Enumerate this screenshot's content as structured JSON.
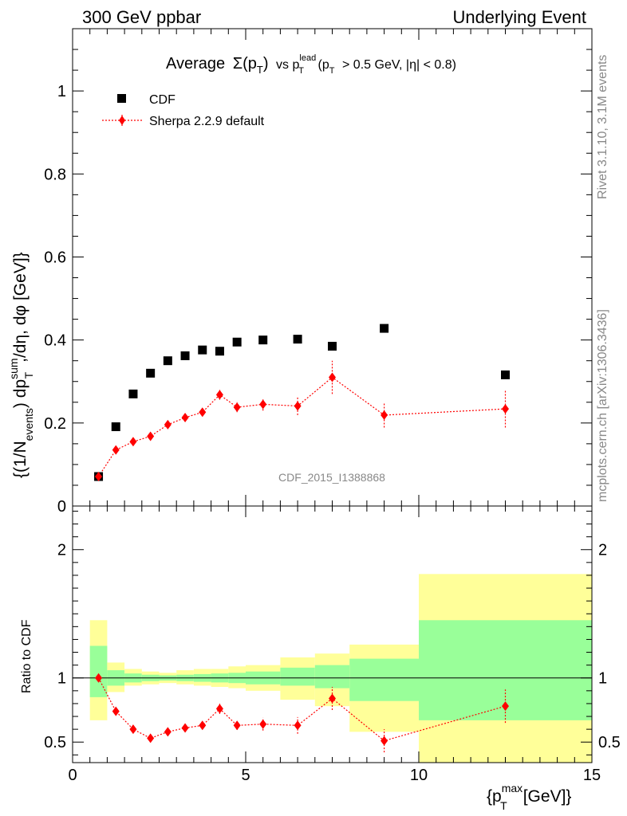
{
  "header": {
    "left": "300 GeV ppbar",
    "right": "Underlying Event"
  },
  "side_labels": {
    "rivet": "Rivet 3.1.10,  3.1M events",
    "mcplots": "mcplots.cern.ch [arXiv:1306.3436]"
  },
  "chart_data": [
    {
      "type": "scatter",
      "title": "Average Σ(pT) vs pT^lead (pT > 0.5 GeV, |η| < 0.8)",
      "title_parts": {
        "main": "Average",
        "sigma": "Σ(p",
        "sigma_sub": "T",
        "sigma_close": ")",
        "vs": "vs p",
        "lead_sup": "lead",
        "lead_sub": "T",
        "cuts_open": "(p",
        "cuts_sub": "T",
        "cuts_rest": "> 0.5 GeV, |η| < 0.8)"
      },
      "ylabel": "{(1/N_events) dp_T^sum/dη, dφ [GeV]}",
      "ylabel_parts": {
        "open": "{(1/N",
        "events_sub": "events",
        "mid": ") dp",
        "sum_sup": "sum",
        "t_sub": "T",
        "rest": ",/dη, dφ [GeV]}"
      },
      "watermark": "CDF_2015_I1388868",
      "xlim": [
        0,
        15
      ],
      "ylim": [
        0,
        1.15
      ],
      "x_ticks": [
        0,
        5,
        10,
        15
      ],
      "y_ticks": [
        0,
        0.2,
        0.4,
        0.6,
        0.8,
        1
      ],
      "y_tick_labels": [
        "0",
        "0.2",
        "0.4",
        "0.6",
        "0.8",
        "1"
      ],
      "legend": {
        "placement": "top-left"
      },
      "series": [
        {
          "name": "CDF",
          "marker": "square",
          "color": "#000000",
          "x": [
            0.75,
            1.25,
            1.75,
            2.25,
            2.75,
            3.25,
            3.75,
            4.25,
            4.75,
            5.5,
            6.5,
            7.5,
            9.0,
            12.5
          ],
          "y": [
            0.071,
            0.191,
            0.27,
            0.32,
            0.35,
            0.362,
            0.376,
            0.373,
            0.395,
            0.4,
            0.402,
            0.385,
            0.428,
            0.316
          ]
        },
        {
          "name": "Sherpa 2.2.9 default",
          "marker": "diamond",
          "color": "#ff0000",
          "x": [
            0.75,
            1.25,
            1.75,
            2.25,
            2.75,
            3.25,
            3.75,
            4.25,
            4.75,
            5.5,
            6.5,
            7.5,
            9.0,
            12.5
          ],
          "y": [
            0.071,
            0.135,
            0.155,
            0.168,
            0.196,
            0.213,
            0.226,
            0.268,
            0.238,
            0.245,
            0.241,
            0.31,
            0.219,
            0.234
          ],
          "yerr": [
            0.004,
            0.006,
            0.007,
            0.008,
            0.008,
            0.009,
            0.01,
            0.012,
            0.012,
            0.015,
            0.022,
            0.04,
            0.03,
            0.045
          ]
        }
      ]
    },
    {
      "type": "scatter",
      "xlabel": "{p_T^max [GeV]}",
      "xlabel_parts": {
        "open": "{p",
        "max_sup": "max",
        "t_sub": "T",
        "rest": "[GeV]}"
      },
      "ylabel": "Ratio to CDF",
      "xlim": [
        0,
        15
      ],
      "ylim": [
        0.34,
        2.34
      ],
      "x_ticks": [
        0,
        5,
        10,
        15
      ],
      "x_tick_labels": [
        "0",
        "5",
        "10",
        "15"
      ],
      "y_ticks": [
        0.5,
        1,
        2
      ],
      "y_tick_labels": [
        "0.5",
        "1",
        "2"
      ],
      "reference_line": 1,
      "bands": {
        "x_edges": [
          0.5,
          1.0,
          1.5,
          2.0,
          2.5,
          3.0,
          3.5,
          4.0,
          4.5,
          5.0,
          6.0,
          7.0,
          8.0,
          10.0,
          15.0
        ],
        "inner_color": "#99ff99",
        "outer_color": "#ffff99",
        "inner_low": [
          0.85,
          0.94,
          0.965,
          0.975,
          0.98,
          0.975,
          0.97,
          0.965,
          0.96,
          0.95,
          0.94,
          0.92,
          0.82,
          0.67
        ],
        "inner_high": [
          1.25,
          1.06,
          1.035,
          1.025,
          1.02,
          1.025,
          1.03,
          1.035,
          1.04,
          1.05,
          1.08,
          1.1,
          1.15,
          1.45
        ],
        "outer_low": [
          0.67,
          0.89,
          0.94,
          0.95,
          0.96,
          0.95,
          0.94,
          0.93,
          0.92,
          0.9,
          0.83,
          0.78,
          0.58,
          0.34
        ],
        "outer_high": [
          1.45,
          1.12,
          1.07,
          1.05,
          1.04,
          1.06,
          1.07,
          1.07,
          1.09,
          1.1,
          1.16,
          1.19,
          1.26,
          1.81
        ]
      },
      "series": [
        {
          "name": "Sherpa 2.2.9 default",
          "marker": "diamond",
          "color": "#ff0000",
          "x": [
            0.75,
            1.25,
            1.75,
            2.25,
            2.75,
            3.25,
            3.75,
            4.25,
            4.75,
            5.5,
            6.5,
            7.5,
            9.0,
            12.5
          ],
          "y": [
            1.0,
            0.74,
            0.6,
            0.53,
            0.58,
            0.61,
            0.63,
            0.76,
            0.63,
            0.64,
            0.63,
            0.84,
            0.51,
            0.78
          ],
          "yerr": [
            0.02,
            0.03,
            0.025,
            0.02,
            0.025,
            0.025,
            0.03,
            0.04,
            0.035,
            0.05,
            0.065,
            0.09,
            0.09,
            0.13
          ]
        }
      ]
    }
  ]
}
